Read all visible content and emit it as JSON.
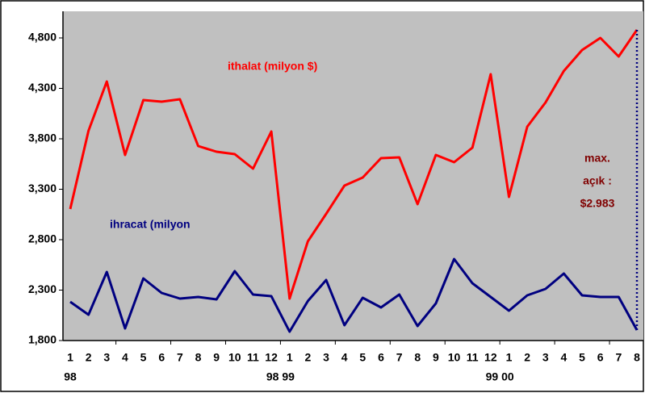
{
  "chart_data": {
    "type": "line",
    "categories": [
      "1",
      "2",
      "3",
      "4",
      "5",
      "6",
      "7",
      "8",
      "9",
      "10",
      "11",
      "12",
      "1",
      "2",
      "3",
      "4",
      "5",
      "6",
      "7",
      "8",
      "9",
      "10",
      "11",
      "12",
      "1",
      "2",
      "3",
      "4",
      "5",
      "6",
      "7",
      "8"
    ],
    "year_labels": [
      "98",
      "98 99",
      "99 00"
    ],
    "series": [
      {
        "name": "ithalat (milyon $)",
        "color": "#ff0000",
        "values": [
          3104,
          3880,
          4368,
          3640,
          4184,
          4168,
          4192,
          3728,
          3672,
          3648,
          3504,
          3872,
          2216,
          2784,
          3056,
          3336,
          3416,
          3608,
          3616,
          3152,
          3640,
          3568,
          3712,
          4440,
          3224,
          3920,
          4160,
          4472,
          4680,
          4800,
          4616,
          4880
        ]
      },
      {
        "name": "ihracat (milyon",
        "color": "#000080",
        "values": [
          2184,
          2056,
          2480,
          1920,
          2416,
          2272,
          2216,
          2232,
          2208,
          2488,
          2256,
          2240,
          1888,
          2192,
          2400,
          1952,
          2224,
          2128,
          2256,
          1944,
          2168,
          2608,
          2368,
          2232,
          2096,
          2248,
          2312,
          2464,
          2248,
          2232,
          2232,
          1904
        ]
      }
    ],
    "annotation": [
      "max.",
      "açık :",
      "$2.983"
    ],
    "annotation_color": "#800000",
    "ylim": [
      1800,
      5064
    ],
    "yticks": [
      {
        "value": 1800,
        "label": "1,800"
      },
      {
        "value": 2300,
        "label": "2,300"
      },
      {
        "value": 2800,
        "label": "2,800"
      },
      {
        "value": 3300,
        "label": "3,300"
      },
      {
        "value": 3800,
        "label": "3,800"
      },
      {
        "value": 4300,
        "label": "4,300"
      },
      {
        "value": 4800,
        "label": "4,800"
      }
    ],
    "plot_color": "#c0c0c0"
  }
}
